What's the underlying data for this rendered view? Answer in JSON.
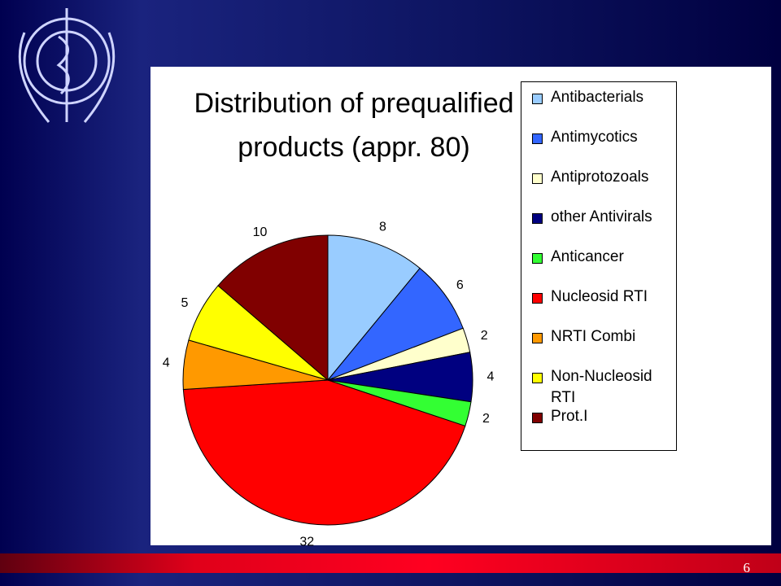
{
  "chart_data": {
    "type": "pie",
    "title": "Distribution of prequalified products (appr. 80)",
    "categories": [
      "Antibacterials",
      "Antimycotics",
      "Antiprotozoals",
      "other Antivirals",
      "Anticancer",
      "Nucleosid RTI",
      "NRTI Combi",
      "Non-Nucleosid RTI",
      "Prot.I"
    ],
    "values": [
      8,
      6,
      2,
      4,
      2,
      32,
      4,
      5,
      10
    ],
    "colors": [
      "#99ccff",
      "#3366ff",
      "#ffffcc",
      "#000080",
      "#33ff33",
      "#ff0000",
      "#ff9900",
      "#ffff00",
      "#800000"
    ]
  },
  "slide_number": "6"
}
